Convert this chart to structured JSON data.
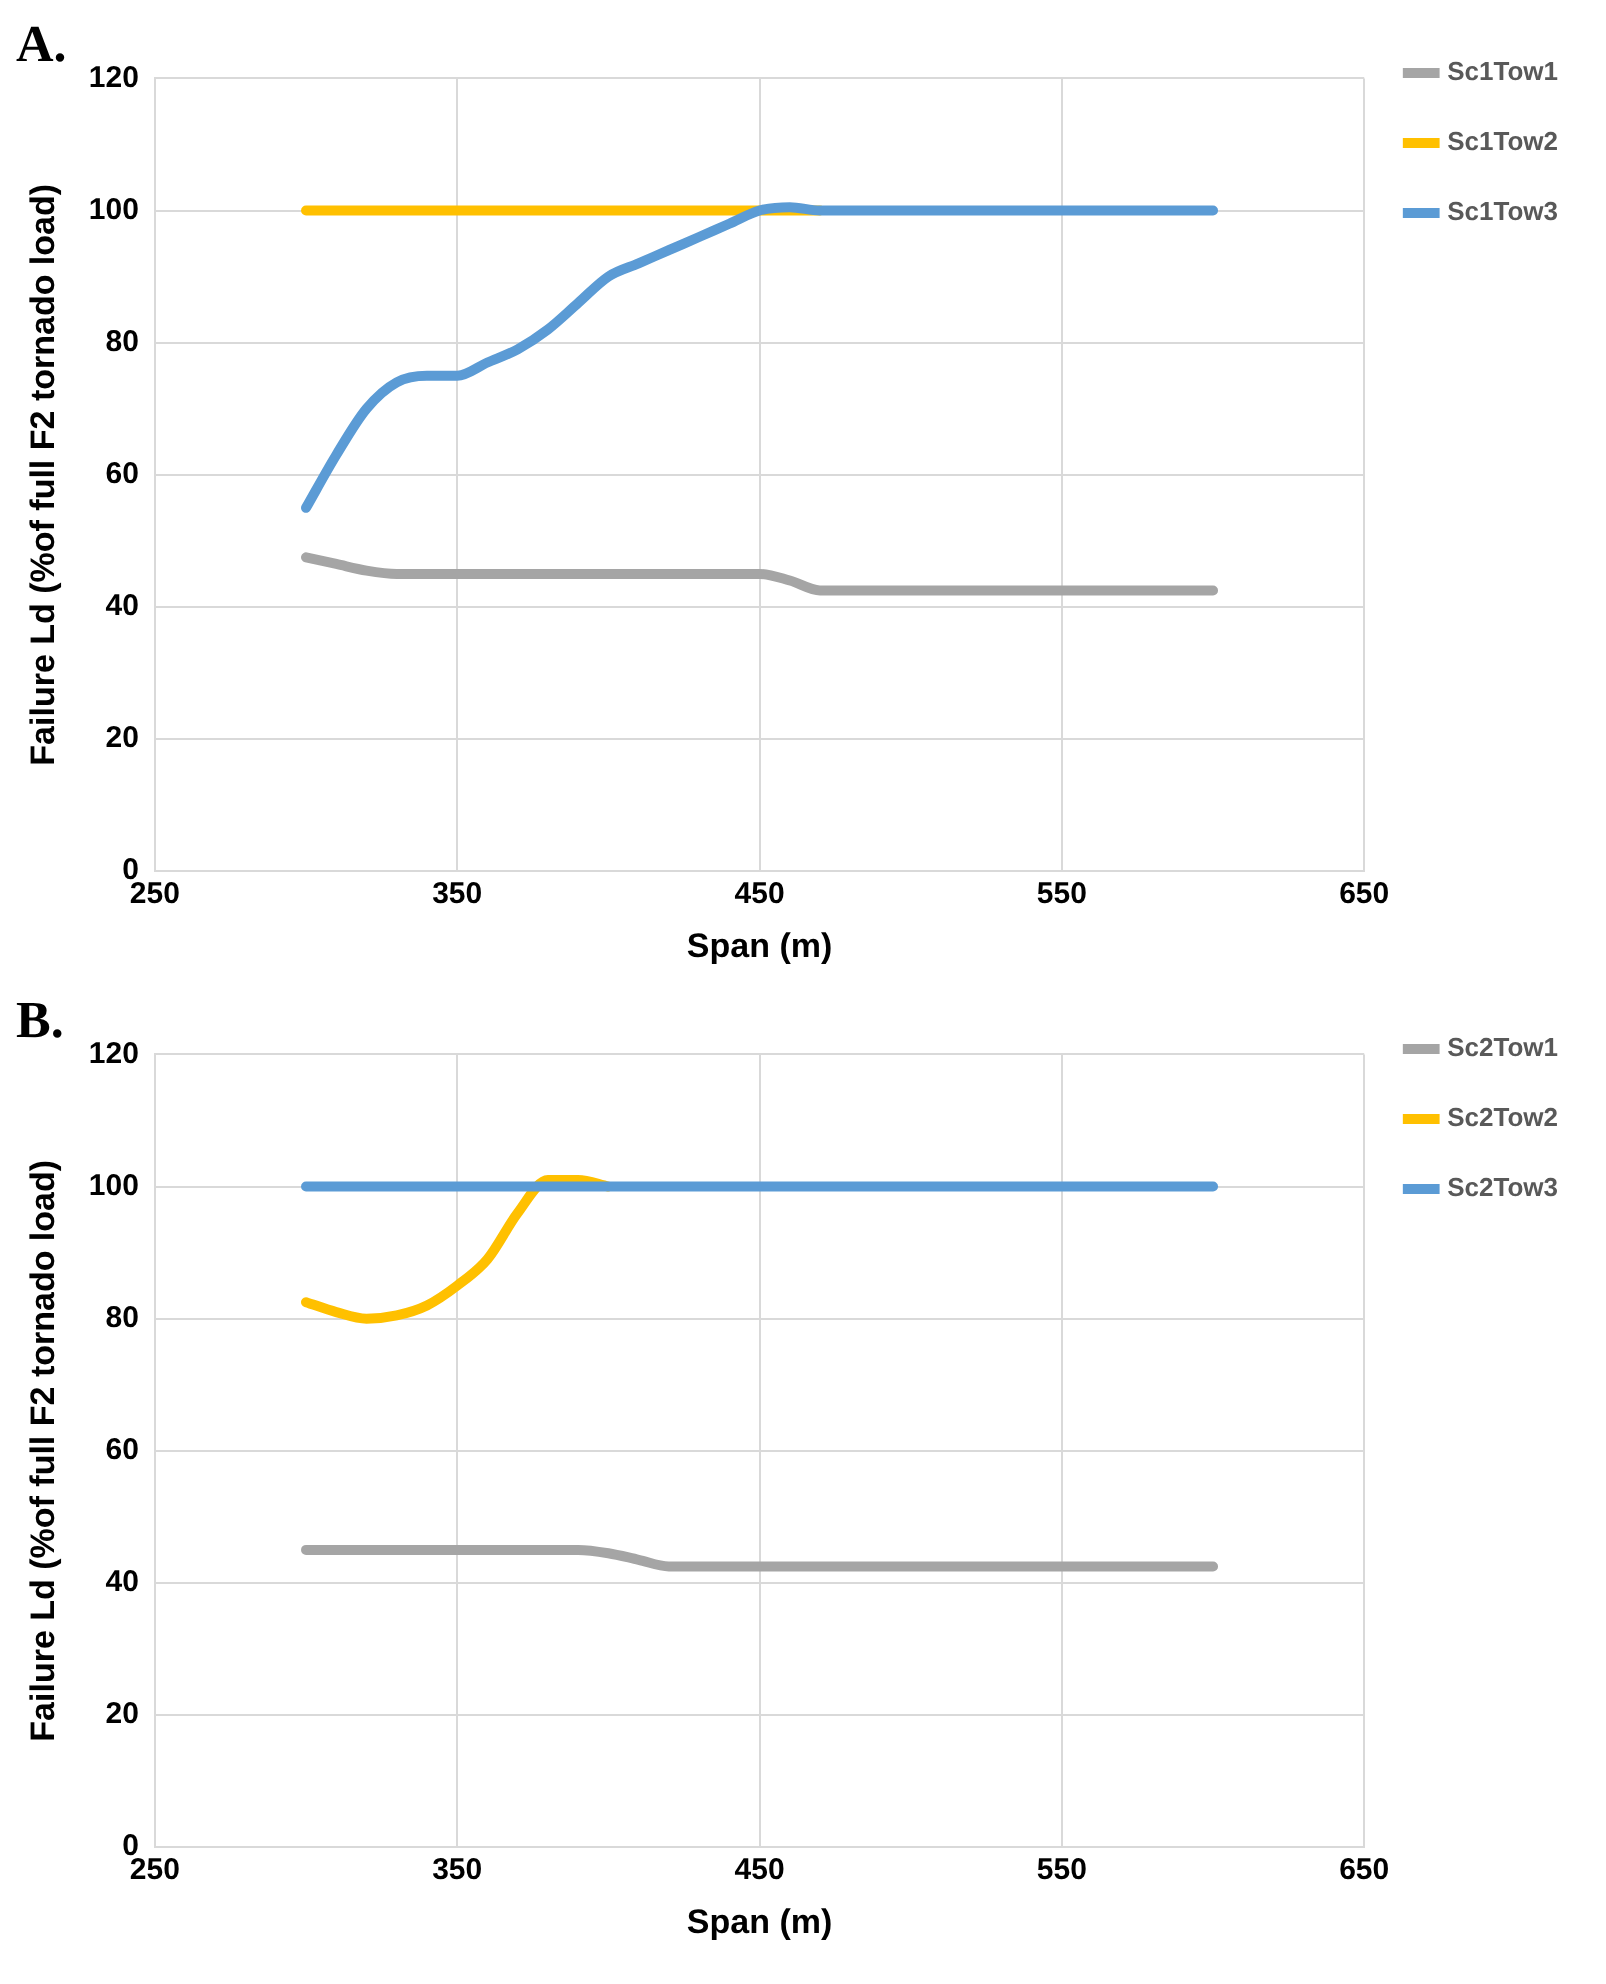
{
  "chart_data": [
    {
      "type": "line",
      "title": "A.",
      "xlabel": "Span (m)",
      "ylabel": "Failure Ld (%of full F2 tornado load)",
      "x": [
        300,
        310,
        320,
        330,
        340,
        350,
        360,
        370,
        380,
        390,
        400,
        410,
        420,
        430,
        440,
        450,
        460,
        470,
        480,
        490,
        500,
        510,
        520,
        530,
        540,
        550,
        560,
        570,
        580,
        590,
        600
      ],
      "series": [
        {
          "name": "Sc1Tow1",
          "color": "#a5a5a5",
          "values": [
            47.5,
            46.5,
            45.5,
            45,
            45,
            45,
            45,
            45,
            45,
            45,
            45,
            45,
            45,
            45,
            45,
            45,
            44,
            42.5,
            42.5,
            42.5,
            42.5,
            42.5,
            42.5,
            42.5,
            42.5,
            42.5,
            42.5,
            42.5,
            42.5,
            42.5,
            42.5
          ]
        },
        {
          "name": "Sc1Tow2",
          "color": "#ffc000",
          "values": [
            100,
            100,
            100,
            100,
            100,
            100,
            100,
            100,
            100,
            100,
            100,
            100,
            100,
            100,
            100,
            100,
            100,
            100,
            null,
            null,
            null,
            null,
            null,
            null,
            null,
            null,
            null,
            null,
            null,
            null,
            null
          ]
        },
        {
          "name": "Sc1Tow3",
          "color": "#5b9bd5",
          "values": [
            55,
            63,
            70,
            74,
            75,
            75,
            77,
            79,
            82,
            86,
            90,
            92,
            94,
            96,
            98,
            100,
            100.5,
            100,
            100,
            100,
            100,
            100,
            100,
            100,
            100,
            100,
            100,
            100,
            100,
            100,
            100
          ]
        }
      ],
      "xlim": [
        250,
        650
      ],
      "xticks": [
        250,
        350,
        450,
        550,
        650
      ],
      "ylim": [
        0,
        120
      ],
      "yticks": [
        0,
        20,
        40,
        60,
        80,
        100,
        120
      ],
      "grid": true,
      "legend": "right",
      "marker": "none"
    },
    {
      "type": "line",
      "title": "B.",
      "xlabel": "Span (m)",
      "ylabel": "Failure Ld (%of full F2 tornado load)",
      "x": [
        300,
        310,
        320,
        330,
        340,
        350,
        360,
        370,
        380,
        390,
        400,
        410,
        420,
        430,
        440,
        450,
        460,
        470,
        480,
        490,
        500,
        510,
        520,
        530,
        540,
        550,
        560,
        570,
        580,
        590,
        600
      ],
      "series": [
        {
          "name": "Sc2Tow1",
          "color": "#a5a5a5",
          "values": [
            45,
            45,
            45,
            45,
            45,
            45,
            45,
            45,
            45,
            45,
            44.5,
            43.5,
            42.5,
            42.5,
            42.5,
            42.5,
            42.5,
            42.5,
            42.5,
            42.5,
            42.5,
            42.5,
            42.5,
            42.5,
            42.5,
            42.5,
            42.5,
            42.5,
            42.5,
            42.5,
            42.5
          ]
        },
        {
          "name": "Sc2Tow2",
          "color": "#ffc000",
          "values": [
            82.5,
            81,
            80,
            80.5,
            82,
            85,
            89,
            96,
            101,
            101,
            100,
            null,
            null,
            null,
            null,
            null,
            null,
            null,
            null,
            null,
            null,
            null,
            null,
            null,
            null,
            null,
            null,
            null,
            null,
            null,
            null
          ]
        },
        {
          "name": "Sc2Tow3",
          "color": "#5b9bd5",
          "values": [
            100,
            100,
            100,
            100,
            100,
            100,
            100,
            100,
            100,
            100,
            100,
            100,
            100,
            100,
            100,
            100,
            100,
            100,
            100,
            100,
            100,
            100,
            100,
            100,
            100,
            100,
            100,
            100,
            100,
            100,
            100
          ]
        }
      ],
      "xlim": [
        250,
        650
      ],
      "xticks": [
        250,
        350,
        450,
        550,
        650
      ],
      "ylim": [
        0,
        120
      ],
      "yticks": [
        0,
        20,
        40,
        60,
        80,
        100,
        120
      ],
      "grid": true,
      "legend": "right",
      "marker": "none"
    }
  ]
}
